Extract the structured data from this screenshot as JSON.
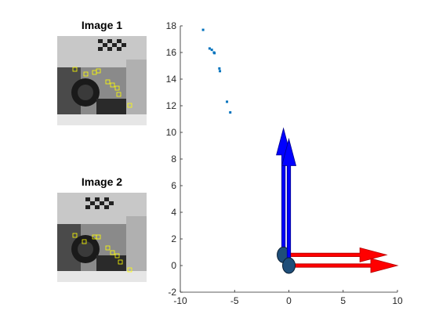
{
  "images": {
    "image1": {
      "title": "Image 1"
    },
    "image2": {
      "title": "Image 2"
    }
  },
  "chart_data": {
    "type": "scatter",
    "title": "",
    "xlabel": "",
    "ylabel": "",
    "xlim": [
      -10,
      10
    ],
    "ylim": [
      -2,
      18
    ],
    "xticks": [
      -10,
      -5,
      0,
      5,
      10
    ],
    "yticks": [
      -2,
      0,
      2,
      4,
      6,
      8,
      10,
      12,
      14,
      16,
      18
    ],
    "grid": false,
    "points": [
      {
        "x": -7.9,
        "y": 17.7
      },
      {
        "x": -7.3,
        "y": 16.3
      },
      {
        "x": -7.1,
        "y": 16.2
      },
      {
        "x": -6.9,
        "y": 16.0
      },
      {
        "x": -6.85,
        "y": 15.95
      },
      {
        "x": -6.4,
        "y": 14.8
      },
      {
        "x": -6.35,
        "y": 14.6
      },
      {
        "x": -5.7,
        "y": 12.3
      },
      {
        "x": -5.4,
        "y": 11.5
      }
    ],
    "point_color": "#0072bd",
    "cameras": [
      {
        "x": -0.5,
        "y": 0.8,
        "arrows": [
          {
            "dx": 0,
            "dy": 9.5,
            "color": "#0000ff"
          },
          {
            "dx": 9.5,
            "dy": 0,
            "color": "#ff0000"
          }
        ]
      },
      {
        "x": 0,
        "y": 0,
        "arrows": [
          {
            "dx": 0,
            "dy": 9.5,
            "color": "#0000ff"
          },
          {
            "dx": 10,
            "dy": 0,
            "color": "#ff0000"
          }
        ]
      }
    ],
    "camera_color": "#1f4e79"
  }
}
